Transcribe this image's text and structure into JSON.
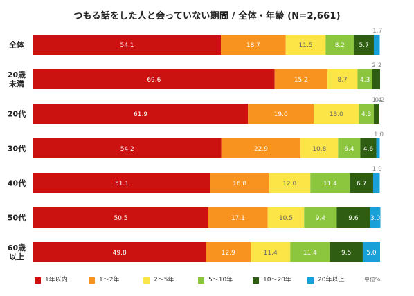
{
  "chart_data": {
    "type": "bar",
    "orientation": "horizontal",
    "stacked": true,
    "title": "つもる話をした人と会っていない期間 / 全体・年齢 (N=2,661)",
    "unit_label": "単位%",
    "categories": [
      "全体",
      "20歳\n未満",
      "20代",
      "30代",
      "40代",
      "50代",
      "60歳\n以上"
    ],
    "series": [
      {
        "name": "1年以内",
        "color": "#cc1111",
        "label_color": "#ffffff",
        "values": [
          54.1,
          69.6,
          61.9,
          54.2,
          51.1,
          50.5,
          49.8
        ]
      },
      {
        "name": "1〜2年",
        "color": "#f7931e",
        "label_color": "#ffffff",
        "values": [
          18.7,
          15.2,
          19.0,
          22.9,
          16.8,
          17.1,
          12.9
        ]
      },
      {
        "name": "2〜5年",
        "color": "#fbe547",
        "label_color": "#666666",
        "values": [
          11.5,
          8.7,
          13.0,
          10.8,
          12.0,
          10.5,
          11.4
        ]
      },
      {
        "name": "5〜10年",
        "color": "#8cc63f",
        "label_color": "#ffffff",
        "values": [
          8.2,
          4.3,
          4.3,
          6.4,
          11.4,
          9.4,
          11.4
        ]
      },
      {
        "name": "10〜20年",
        "color": "#2f5d12",
        "label_color": "#ffffff",
        "values": [
          5.7,
          2.2,
          1.4,
          4.6,
          6.7,
          9.6,
          9.5
        ]
      },
      {
        "name": "20年以上",
        "color": "#1aa0d8",
        "label_color": "#ffffff",
        "values": [
          1.7,
          0.0,
          0.2,
          1.0,
          1.9,
          3.0,
          5.0
        ]
      }
    ],
    "data_labels": [
      [
        "54.1",
        "18.7",
        "11.5",
        "8.2",
        "5.7",
        "1.7"
      ],
      [
        "69.6",
        "15.2",
        "8.7",
        "4.3",
        "2.2",
        ""
      ],
      [
        "61.9",
        "19.0",
        "13.0",
        "4.3",
        "1.4",
        "0.2"
      ],
      [
        "54.2",
        "22.9",
        "10.8",
        "6.4",
        "4.6",
        "1.0"
      ],
      [
        "51.1",
        "16.8",
        "12.0",
        "11.4",
        "6.7",
        "1.9"
      ],
      [
        "50.5",
        "17.1",
        "10.5",
        "9.4",
        "9.6",
        "3.0"
      ],
      [
        "49.8",
        "12.9",
        "11.4",
        "11.4",
        "9.5",
        "5.0"
      ]
    ],
    "xlim": [
      0,
      100
    ],
    "grid": false,
    "legend_position": "bottom"
  }
}
